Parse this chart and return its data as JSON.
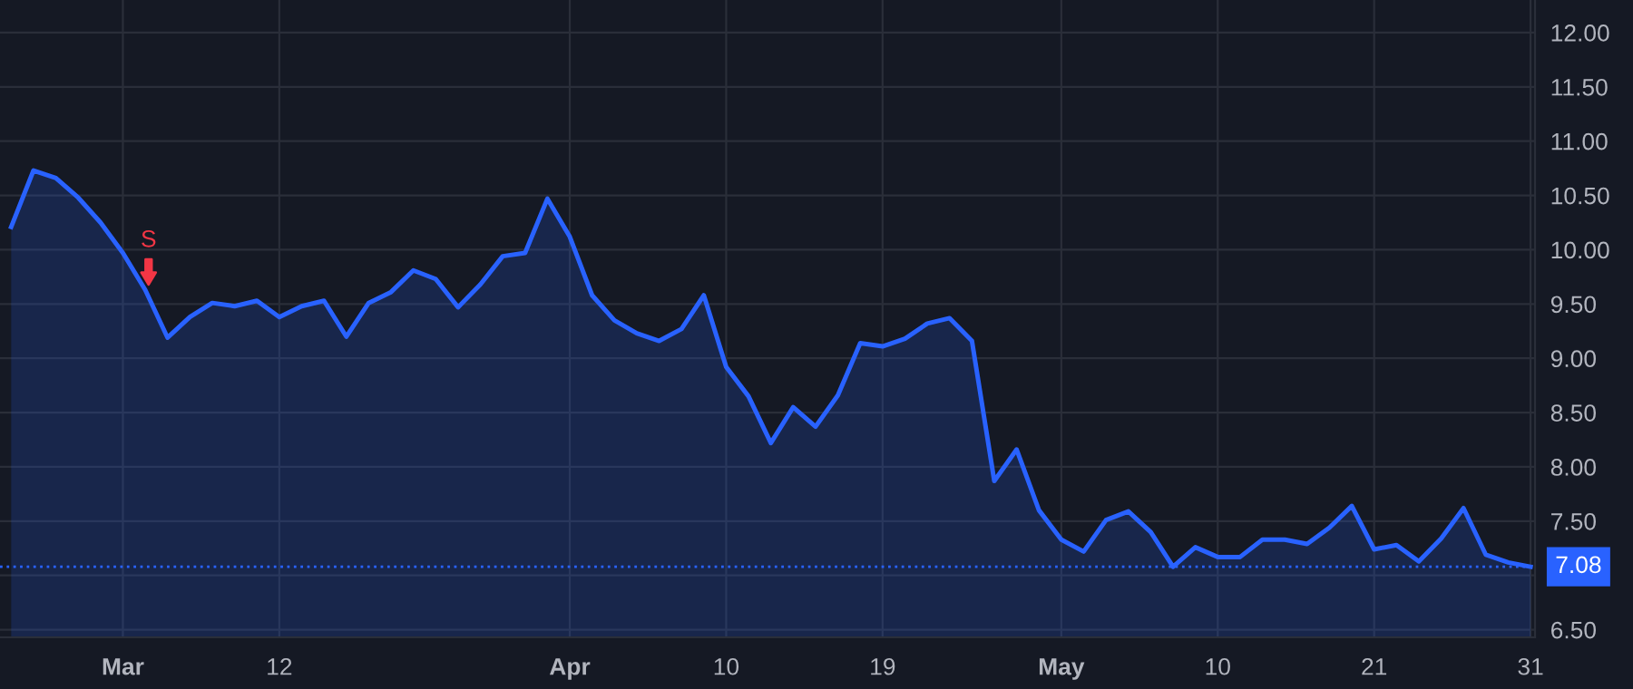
{
  "chart_data": {
    "type": "area",
    "categories": [
      null,
      null,
      null,
      null,
      null,
      "Mar",
      null,
      null,
      null,
      null,
      null,
      null,
      "12",
      null,
      null,
      null,
      null,
      null,
      null,
      null,
      null,
      null,
      null,
      null,
      null,
      "Apr",
      null,
      null,
      null,
      null,
      null,
      null,
      "10",
      null,
      null,
      null,
      null,
      null,
      null,
      "19",
      null,
      null,
      null,
      null,
      null,
      null,
      null,
      "May",
      null,
      null,
      null,
      null,
      null,
      null,
      "10",
      null,
      null,
      null,
      null,
      null,
      null,
      "21",
      null,
      null,
      null,
      null,
      null,
      null,
      "31"
    ],
    "series": [
      {
        "color": "#2962ff",
        "values": [
          10.21,
          10.73,
          10.66,
          10.48,
          10.25,
          9.97,
          9.63,
          9.19,
          9.38,
          9.51,
          9.48,
          9.53,
          9.38,
          9.48,
          9.53,
          9.2,
          9.51,
          9.61,
          9.81,
          9.73,
          9.47,
          9.68,
          9.94,
          9.97,
          10.47,
          10.12,
          9.58,
          9.35,
          9.23,
          9.16,
          9.27,
          9.58,
          8.92,
          8.65,
          8.22,
          8.55,
          8.37,
          8.66,
          9.14,
          9.11,
          9.18,
          9.32,
          9.37,
          9.16,
          7.87,
          8.16,
          7.6,
          7.33,
          7.22,
          7.51,
          7.59,
          7.4,
          7.08,
          7.26,
          7.17,
          7.17,
          7.33,
          7.33,
          7.29,
          7.44,
          7.64,
          7.24,
          7.28,
          7.13,
          7.34,
          7.62,
          7.19,
          7.12,
          7.08
        ]
      }
    ],
    "ylim": [
      6.43,
      12.3
    ],
    "yticks": [
      {
        "value": 6.5,
        "label": "6.50"
      },
      {
        "value": 7,
        "label": null
      },
      {
        "value": 7.5,
        "label": "7.50"
      },
      {
        "value": 8,
        "label": "8.00"
      },
      {
        "value": 8.5,
        "label": "8.50"
      },
      {
        "value": 9,
        "label": "9.00"
      },
      {
        "value": 9.5,
        "label": "9.50"
      },
      {
        "value": 10,
        "label": "10.00"
      },
      {
        "value": 10.5,
        "label": "10.50"
      },
      {
        "value": 11,
        "label": "11.00"
      },
      {
        "value": 11.5,
        "label": "11.50"
      },
      {
        "value": 12,
        "label": "12.00"
      }
    ],
    "grid": true,
    "ref_lines": [
      {
        "axis": "y",
        "value": 7.08,
        "label": "7.08",
        "color": "#2962ff",
        "line_style": "dotted"
      }
    ],
    "annotations": [
      {
        "text": "S",
        "y": 9.63
      }
    ]
  }
}
